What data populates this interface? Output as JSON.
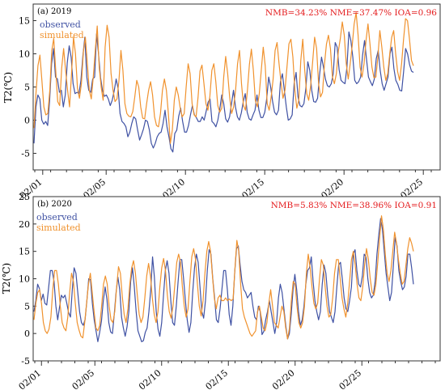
{
  "chart_data": [
    {
      "type": "line",
      "title": "(a) 2019",
      "ylabel": "T2(℃)",
      "ylim": [
        -7.5,
        17.5
      ],
      "yticks": [
        -5,
        0,
        5,
        10,
        15
      ],
      "xlim": [
        0,
        24
      ],
      "x_tick_positions": [
        1,
        5,
        10,
        15,
        20,
        25
      ],
      "x_tick_labels": [
        "02/01",
        "02/05",
        "02/10",
        "02/15",
        "02/20",
        "02/25"
      ],
      "stats": "NMB=34.23% NME=37.47% IOA=0.96",
      "colors": {
        "observed": "#3f51a3",
        "simulated": "#f0922e",
        "stats": "#e41a1c"
      },
      "series": [
        {
          "name": "observed",
          "values": [
            -3.5,
            2,
            3.8,
            3.2,
            0,
            -0.6,
            -0.2,
            -0.8,
            3,
            8.5,
            10.8,
            6.5,
            6.2,
            4.2,
            4.5,
            2,
            3.8,
            8.6,
            11.2,
            9.5,
            5.5,
            4,
            4.2,
            4,
            6,
            9.7,
            12.5,
            6.5,
            4.5,
            4.2,
            6.2,
            6.5,
            13,
            10,
            6.5,
            4.5,
            3.6,
            3.8,
            3.2,
            2.2,
            3,
            4.4,
            6.2,
            4.8,
            1,
            -0.2,
            -0.5,
            -1,
            -2.5,
            -1.8,
            -0.5,
            0.5,
            0.2,
            -1.5,
            -3,
            -2.2,
            -1.3,
            0,
            -0.2,
            -1.5,
            -3.5,
            -4.2,
            -3.5,
            -2.5,
            -2,
            -1.8,
            -0.5,
            1.5,
            -1,
            -2.5,
            -4.3,
            -4.8,
            -2,
            -1.5,
            0.6,
            1.8,
            -0.2,
            -1.8,
            -1.8,
            -0.8,
            0.8,
            2.2,
            0.8,
            0.4,
            -0.2,
            -0.2,
            0.5,
            0,
            1.3,
            2.7,
            3.2,
            -0.2,
            -0.5,
            -1,
            0,
            1.7,
            3.8,
            2.5,
            0.2,
            -0.3,
            0.5,
            2.5,
            4.5,
            2,
            0.5,
            0,
            1.1,
            2.8,
            4,
            1.2,
            0.2,
            0,
            0.8,
            1.5,
            3.8,
            1.5,
            0.4,
            0.4,
            1.2,
            3.3,
            6.5,
            5,
            2.8,
            1.2,
            0.8,
            1.5,
            5.8,
            7,
            4.5,
            2,
            0,
            0.2,
            0.8,
            5.5,
            7.2,
            3.5,
            2.2,
            2,
            2.5,
            4.8,
            8.8,
            7.5,
            4.5,
            2.8,
            2.7,
            3.3,
            6.8,
            9.5,
            8,
            6.2,
            5.2,
            5,
            5.5,
            7,
            11.7,
            11,
            7.6,
            6,
            5.7,
            5.5,
            8,
            13.3,
            12,
            9.5,
            6,
            5.5,
            5.8,
            6.5,
            9.8,
            12,
            9.2,
            6.5,
            5.8,
            5.2,
            6.2,
            9.3,
            10.5,
            7.5,
            5.5,
            4.5,
            5.5,
            6.5,
            10,
            11,
            7.8,
            6,
            5.4,
            4.5,
            4.4,
            7.4,
            10.8,
            10,
            8.4,
            7.4,
            7.2
          ]
        },
        {
          "name": "simulated",
          "values": [
            -1.2,
            4,
            8.2,
            9.8,
            6,
            2,
            0.8,
            1,
            4.5,
            10.5,
            12.3,
            7.5,
            2.8,
            2.2,
            7.8,
            10.8,
            7.5,
            4.5,
            2,
            7,
            12.5,
            10,
            4.8,
            3.3,
            5.5,
            10.3,
            12.5,
            8.5,
            4.5,
            3.2,
            6.5,
            10.5,
            14.2,
            8,
            5,
            3,
            11,
            14.3,
            12.5,
            7,
            4.5,
            2.8,
            3.2,
            6,
            10.5,
            7.5,
            2.5,
            1,
            0.6,
            0.5,
            1.3,
            3.5,
            6,
            5,
            2,
            0.3,
            0.2,
            2.5,
            4.5,
            5.8,
            3.8,
            0.5,
            -0.8,
            -1,
            1,
            4.5,
            6.2,
            4.5,
            1,
            -3.5,
            -1.5,
            3,
            5,
            3.8,
            1.8,
            0.5,
            1,
            5,
            8.5,
            7,
            2.5,
            0.8,
            0.5,
            3.4,
            7.4,
            8.3,
            5.5,
            2.5,
            1.5,
            3.6,
            7.5,
            8.5,
            5.8,
            2.2,
            1.2,
            1.8,
            6.5,
            9.6,
            7,
            3.5,
            1,
            2,
            4.5,
            8.5,
            10.5,
            5.5,
            2.2,
            1.5,
            4.5,
            8.4,
            10.7,
            7.5,
            3,
            2,
            4,
            7.5,
            11,
            8.2,
            2.5,
            1.5,
            3.5,
            6.2,
            10.5,
            11.7,
            8.5,
            5.7,
            3.3,
            4.5,
            8,
            11.5,
            12.2,
            9.5,
            4.5,
            1.8,
            3,
            9,
            12.2,
            7.5,
            4,
            3,
            5.2,
            8.8,
            12.5,
            10.8,
            5.5,
            3.5,
            4.2,
            8.5,
            11.5,
            12.8,
            10.8,
            6.5,
            5.5,
            7,
            10.4,
            12.3,
            14.8,
            12.8,
            8.5,
            6.2,
            8.5,
            11.2,
            14.5,
            16.2,
            12.8,
            8,
            6.5,
            8.5,
            12,
            14.5,
            11.5,
            8,
            6.4,
            6.5,
            9.5,
            13.5,
            11,
            8,
            6,
            7,
            10,
            12.5,
            13.5,
            10,
            7.3,
            6,
            8.5,
            12.2,
            15.3,
            15,
            12.2,
            9,
            8.2
          ]
        }
      ]
    },
    {
      "type": "line",
      "title": "(b) 2020",
      "ylabel": "T2(℃)",
      "ylim": [
        -5,
        25
      ],
      "yticks": [
        -5,
        0,
        5,
        10,
        15,
        20,
        25
      ],
      "xlim": [
        0,
        29
      ],
      "x_tick_positions": [
        1,
        5,
        10,
        15,
        20,
        25
      ],
      "x_tick_labels": [
        "02/01",
        "02/05",
        "02/10",
        "02/15",
        "02/20",
        "02/25"
      ],
      "stats": "NMB=5.83% NME=38.96% IOA=0.91",
      "colors": {
        "observed": "#3f51a3",
        "simulated": "#f0922e",
        "stats": "#e41a1c"
      },
      "series": [
        {
          "name": "observed",
          "values": [
            4,
            6,
            9,
            8.2,
            6,
            7.2,
            5.5,
            5.2,
            8.3,
            11.5,
            11.5,
            9.5,
            5,
            2.5,
            4.8,
            7,
            6.5,
            7,
            5.5,
            3.8,
            3,
            8,
            12,
            11,
            7.5,
            4,
            2,
            1.5,
            2.5,
            6,
            10,
            9.8,
            5.5,
            2.5,
            0.5,
            -1.5,
            0.2,
            2.3,
            6,
            8.5,
            6.2,
            2,
            0.3,
            0,
            3.5,
            7.5,
            10.3,
            8,
            3,
            1,
            -0.5,
            1.2,
            4,
            9.5,
            12,
            8.5,
            4,
            0.5,
            -0.5,
            -1.5,
            -1.3,
            0.2,
            1,
            4,
            8,
            14,
            10.3,
            4,
            0.8,
            -0.5,
            2,
            7,
            11.5,
            13.3,
            11,
            6,
            2,
            1.5,
            5,
            9.5,
            13.5,
            13.5,
            10,
            6,
            2.5,
            0.2,
            2,
            7.5,
            12,
            14.5,
            13,
            8.5,
            4,
            2.8,
            6,
            11.5,
            15.3,
            14.5,
            10,
            6.5,
            2.5,
            2,
            4.5,
            8,
            11.5,
            11.5,
            8,
            3.5,
            1.5,
            5,
            11,
            15.5,
            16,
            12.5,
            9.5,
            8,
            7.5,
            6.5,
            7,
            7.5,
            5,
            3,
            2.5,
            5,
            4,
            -0.2,
            0.4,
            2.5,
            4,
            6,
            4,
            2,
            0,
            2,
            6.5,
            9,
            7.5,
            4.5,
            1.5,
            -1,
            0,
            3.5,
            8,
            10.8,
            8,
            4,
            1.5,
            2.5,
            5,
            9,
            11.5,
            12,
            14,
            9.5,
            6,
            4,
            2.5,
            4,
            9,
            12.5,
            11,
            7,
            4,
            3,
            2,
            4,
            8.5,
            12.5,
            13,
            10,
            6.5,
            4.5,
            4,
            6,
            8.5,
            14.5,
            15.3,
            11.5,
            9,
            8.5,
            10.5,
            14.5,
            14,
            10,
            7.5,
            6.5,
            7,
            9.5,
            14.5,
            18,
            21,
            19,
            15,
            11,
            8.5,
            6,
            7.5,
            12.5,
            17.5,
            16,
            11.5,
            9.5,
            8,
            8.5,
            10.5,
            14.5,
            14.5,
            12,
            9
          ]
        },
        {
          "name": "simulated",
          "values": [
            2.5,
            5.5,
            7.5,
            8,
            5.5,
            2,
            0.5,
            0,
            0.8,
            3,
            8,
            11.5,
            11.5,
            9,
            5,
            2,
            1,
            0.5,
            3,
            7.5,
            11,
            9.5,
            5.5,
            2,
            0.6,
            -0.5,
            -0.8,
            2,
            5.5,
            9,
            11,
            7.5,
            4,
            1,
            0.5,
            1.5,
            5,
            9,
            10.5,
            9,
            5,
            2.5,
            2,
            4,
            8.5,
            12.2,
            11,
            6.8,
            3.5,
            2,
            4.5,
            9,
            12,
            13.3,
            11,
            7,
            3.5,
            2,
            3,
            6.5,
            10.5,
            12.8,
            10.5,
            6.5,
            3.5,
            2,
            4,
            8.5,
            12,
            13.7,
            11.5,
            7,
            4,
            2.8,
            5,
            9,
            13,
            14.5,
            13,
            8.5,
            5,
            3,
            4.5,
            9.5,
            14,
            15.5,
            13.5,
            9,
            5,
            3.2,
            6,
            11,
            15,
            16.8,
            15,
            10.5,
            6.5,
            4.5,
            6.5,
            7,
            6,
            6,
            6.5,
            6,
            6.3,
            6,
            6.3,
            12,
            17,
            15,
            9,
            4.5,
            3,
            2,
            1,
            0,
            -0.5,
            0,
            0.5,
            4,
            5,
            3,
            1,
            0.5,
            2,
            5.5,
            8,
            5,
            2,
            1.5,
            1,
            3,
            5,
            4,
            1,
            -1,
            1,
            6,
            9.5,
            9,
            5,
            2,
            1,
            2,
            5,
            11,
            14.5,
            12,
            8.5,
            5.5,
            4.5,
            5.5,
            10,
            13.5,
            12.5,
            8.5,
            5,
            3,
            3.5,
            6.5,
            11,
            13.5,
            13.5,
            10,
            6.5,
            4.5,
            3,
            5.5,
            9.5,
            13.5,
            15,
            12.5,
            9,
            6.5,
            6,
            8.5,
            12.5,
            15.5,
            13.5,
            10,
            7.5,
            7,
            9,
            13,
            17.5,
            21.5,
            19,
            14.5,
            11,
            9.5,
            11.5,
            15,
            18.5,
            16.5,
            13.5,
            11,
            9,
            9.5,
            12.5,
            15.5,
            17.5,
            16.5,
            15
          ]
        }
      ]
    }
  ]
}
